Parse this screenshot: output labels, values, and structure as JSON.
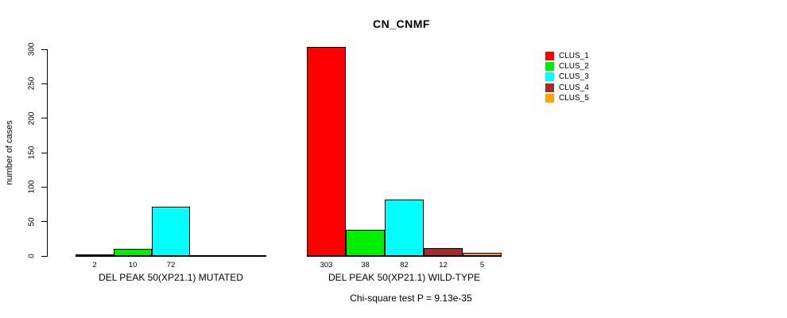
{
  "chart_data": {
    "type": "bar",
    "title": "CN_CNMF",
    "xlabel": "",
    "ylabel": "number of cases",
    "ylim": [
      0,
      300
    ],
    "yticks": [
      0,
      50,
      100,
      150,
      200,
      250,
      300
    ],
    "grid": false,
    "legend_position": "top-right",
    "legend": [
      {
        "name": "CLUS_1",
        "color": "#FF0000"
      },
      {
        "name": "CLUS_2",
        "color": "#00EE00"
      },
      {
        "name": "CLUS_3",
        "color": "#00FFFF"
      },
      {
        "name": "CLUS_4",
        "color": "#A52A2A"
      },
      {
        "name": "CLUS_5",
        "color": "#FFA500"
      }
    ],
    "groups": [
      {
        "category": "DEL PEAK 50(XP21.1) MUTATED",
        "values": [
          2,
          10,
          72,
          0,
          0
        ],
        "bar_labels": [
          "2",
          "10",
          "72",
          "",
          ""
        ]
      },
      {
        "category": "DEL PEAK 50(XP21.1) WILD-TYPE",
        "values": [
          303,
          38,
          82,
          12,
          5
        ],
        "bar_labels": [
          "303",
          "38",
          "82",
          "12",
          "5"
        ]
      }
    ],
    "annotation": "Chi-square test P = 9.13e-35"
  }
}
